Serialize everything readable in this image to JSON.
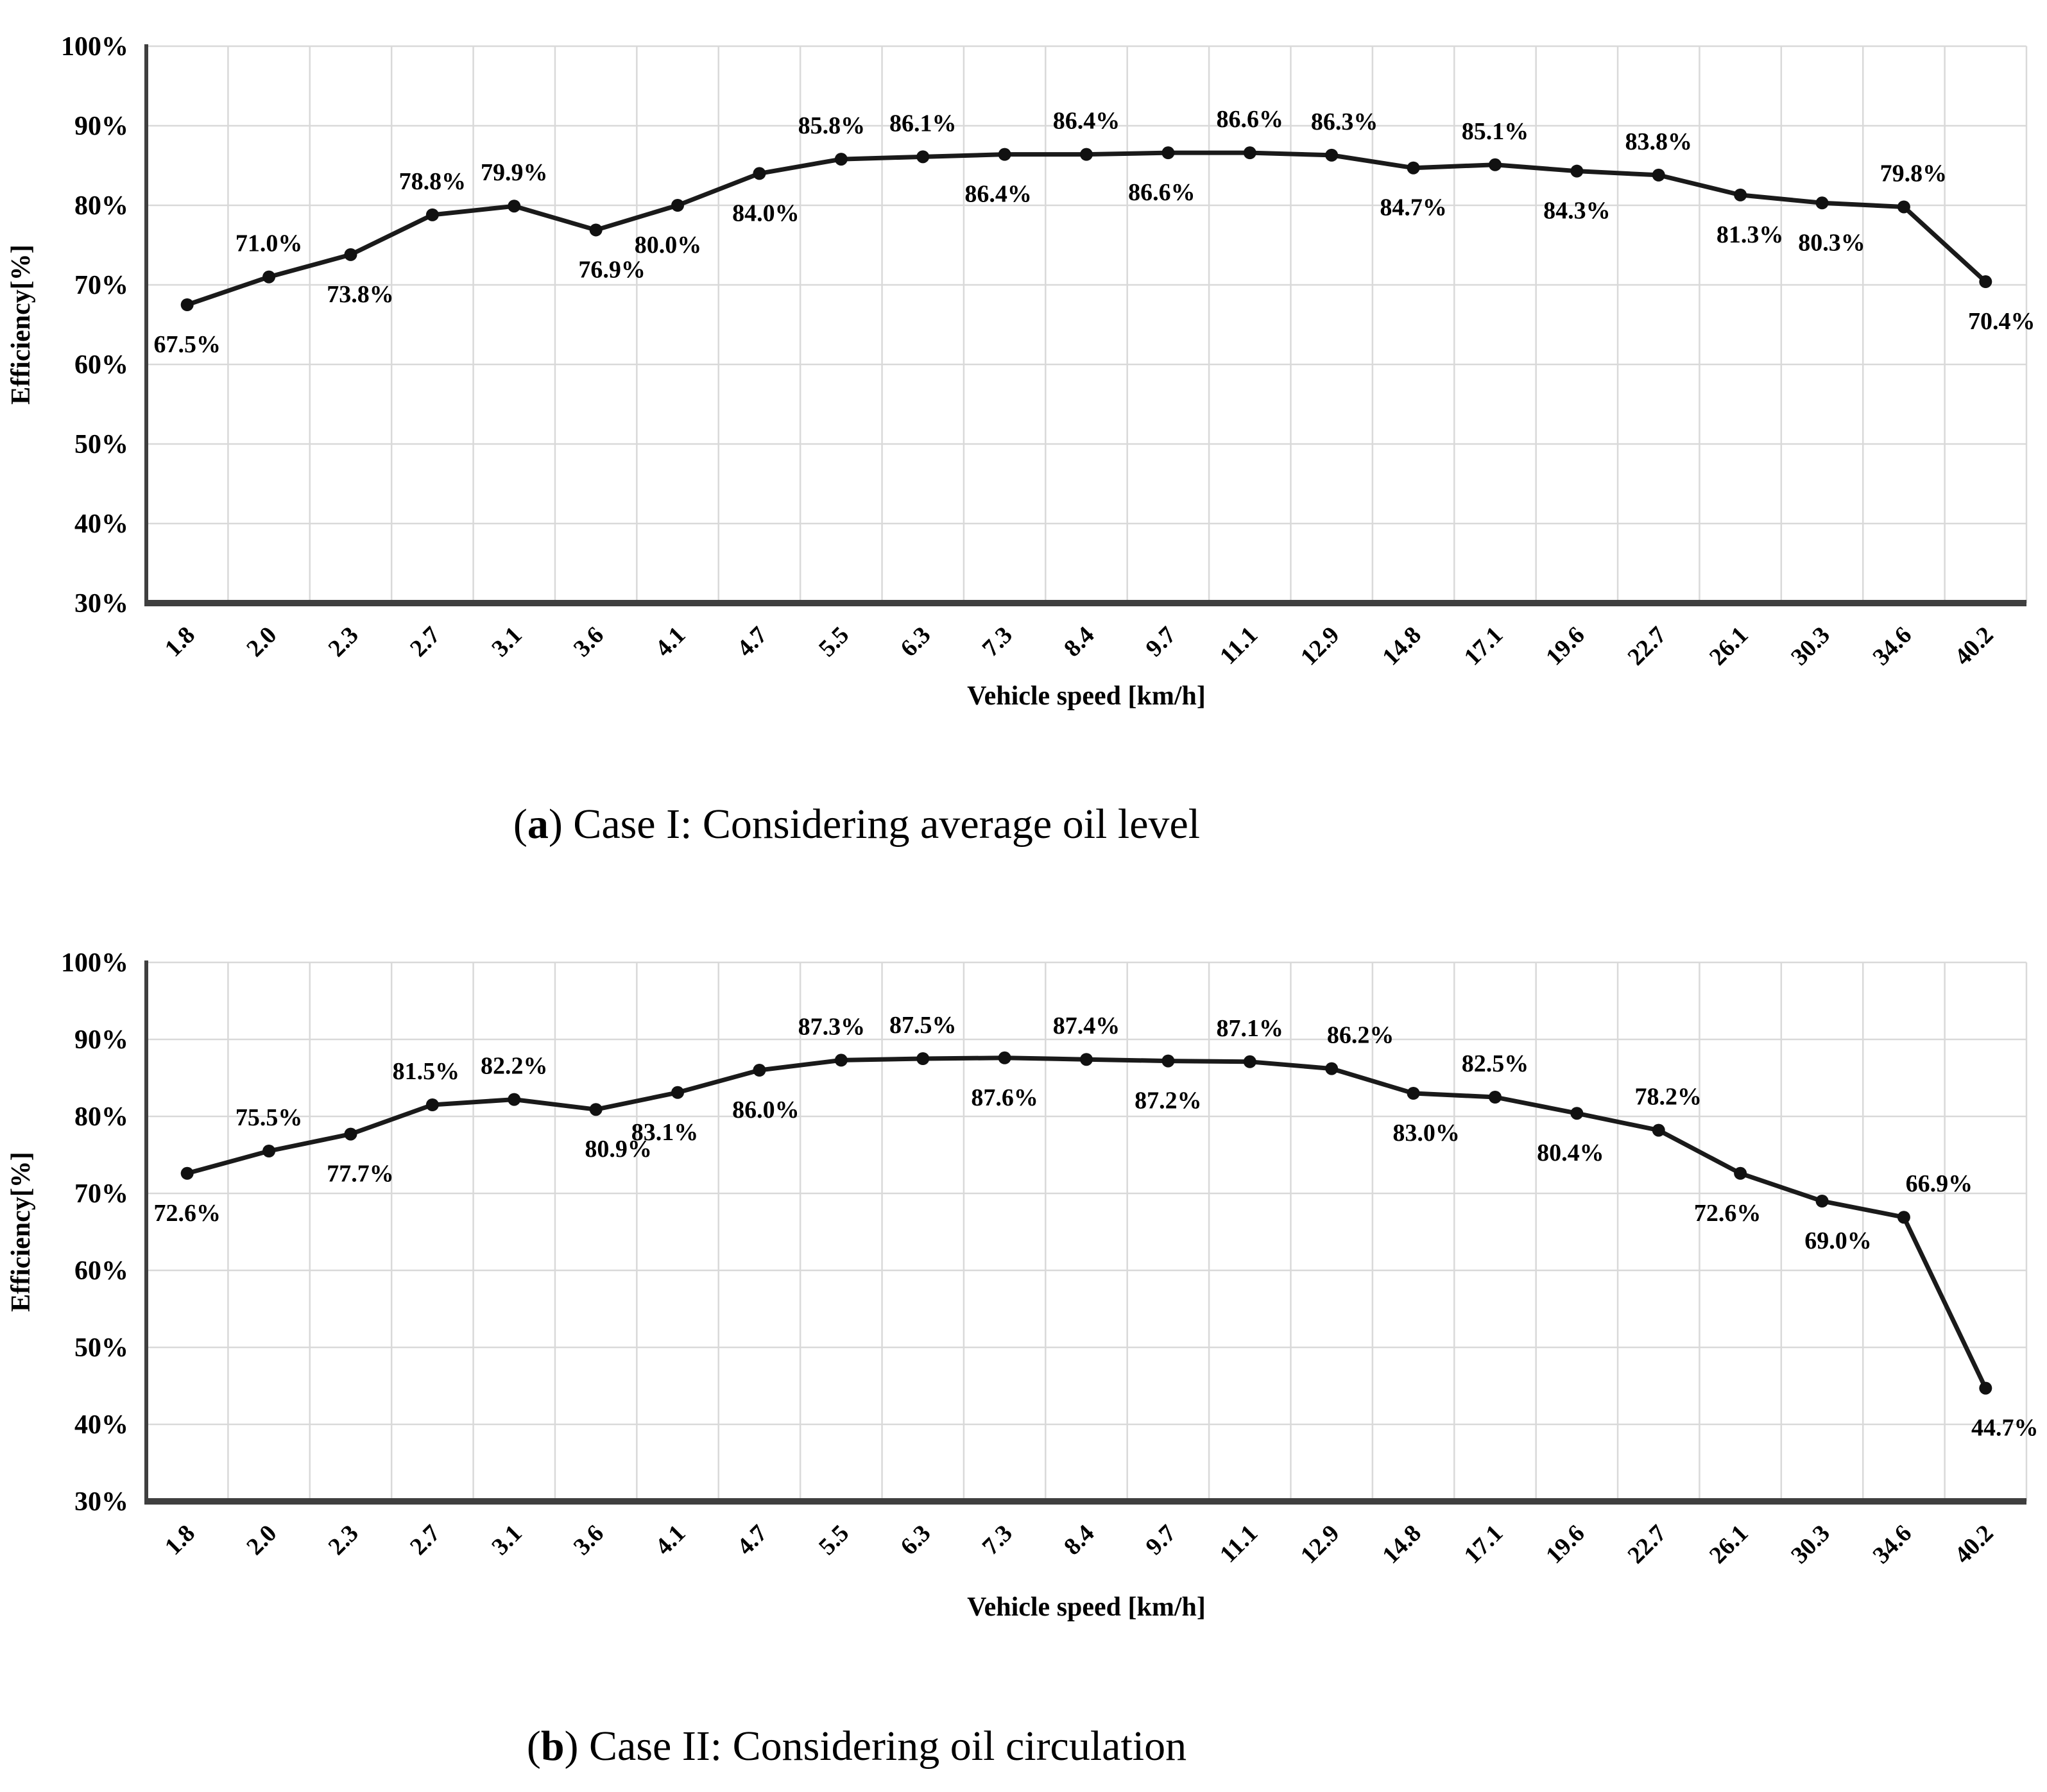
{
  "captions": {
    "a": {
      "pre": "(",
      "bold": "a",
      "post": ") Case I: Considering average oil level"
    },
    "b": {
      "pre": "(",
      "bold": "b",
      "post": ") Case II: Considering oil circulation"
    }
  },
  "chart_data": [
    {
      "id": "a",
      "type": "line",
      "title": "(a) Case I: Considering average oil level",
      "xlabel": "Vehicle speed [km/h]",
      "ylabel": "Efficiency[%]",
      "ylim": [
        30,
        100
      ],
      "y_tick_labels": [
        "100%",
        "90%",
        "80%",
        "70%",
        "60%",
        "50%",
        "40%",
        "30%"
      ],
      "grid": true,
      "legend": "none",
      "line_color": "#1a1a1a",
      "categories": [
        "1.8",
        "2.0",
        "2.3",
        "2.7",
        "3.1",
        "3.6",
        "4.1",
        "4.7",
        "5.5",
        "6.3",
        "7.3",
        "8.4",
        "9.7",
        "11.1",
        "12.9",
        "14.8",
        "17.1",
        "19.6",
        "22.7",
        "26.1",
        "30.3",
        "34.6",
        "40.2"
      ],
      "values": [
        67.5,
        71.0,
        73.8,
        78.8,
        79.9,
        76.9,
        80.0,
        84.0,
        85.8,
        86.1,
        86.4,
        86.4,
        86.6,
        86.6,
        86.3,
        84.7,
        85.1,
        84.3,
        83.8,
        81.3,
        80.3,
        79.8,
        70.4
      ],
      "labels": [
        {
          "text": "67.5%",
          "pos": "below",
          "dx": 0
        },
        {
          "text": "71.0%",
          "pos": "above",
          "dx": 0
        },
        {
          "text": "73.8%",
          "pos": "below",
          "dx": 15
        },
        {
          "text": "78.8%",
          "pos": "above",
          "dx": 0
        },
        {
          "text": "79.9%",
          "pos": "above",
          "dx": 0
        },
        {
          "text": "76.9%",
          "pos": "below",
          "dx": 25
        },
        {
          "text": "80.0%",
          "pos": "below",
          "dx": -15
        },
        {
          "text": "84.0%",
          "pos": "below",
          "dx": 10
        },
        {
          "text": "85.8%",
          "pos": "above",
          "dx": -15
        },
        {
          "text": "86.1%",
          "pos": "above",
          "dx": 0
        },
        {
          "text": "86.4%",
          "pos": "below",
          "dx": -10
        },
        {
          "text": "86.4%",
          "pos": "above",
          "dx": 0
        },
        {
          "text": "86.6%",
          "pos": "below",
          "dx": -10
        },
        {
          "text": "86.6%",
          "pos": "above",
          "dx": 0
        },
        {
          "text": "86.3%",
          "pos": "above",
          "dx": 20
        },
        {
          "text": "84.7%",
          "pos": "below",
          "dx": 0
        },
        {
          "text": "85.1%",
          "pos": "above",
          "dx": 0
        },
        {
          "text": "84.3%",
          "pos": "below",
          "dx": 0
        },
        {
          "text": "83.8%",
          "pos": "above",
          "dx": 0
        },
        {
          "text": "81.3%",
          "pos": "below",
          "dx": 15
        },
        {
          "text": "80.3%",
          "pos": "below",
          "dx": 15
        },
        {
          "text": "79.8%",
          "pos": "above",
          "dx": 15
        },
        {
          "text": "70.4%",
          "pos": "below",
          "dx": 25
        }
      ]
    },
    {
      "id": "b",
      "type": "line",
      "title": "(b) Case II: Considering oil circulation",
      "xlabel": "Vehicle speed [km/h]",
      "ylabel": "Efficiency[%]",
      "ylim": [
        30,
        100
      ],
      "y_tick_labels": [
        "100%",
        "90%",
        "80%",
        "70%",
        "60%",
        "50%",
        "40%",
        "30%"
      ],
      "grid": true,
      "legend": "none",
      "line_color": "#1a1a1a",
      "categories": [
        "1.8",
        "2.0",
        "2.3",
        "2.7",
        "3.1",
        "3.6",
        "4.1",
        "4.7",
        "5.5",
        "6.3",
        "7.3",
        "8.4",
        "9.7",
        "11.1",
        "12.9",
        "14.8",
        "17.1",
        "19.6",
        "22.7",
        "26.1",
        "30.3",
        "34.6",
        "40.2"
      ],
      "values": [
        72.6,
        75.5,
        77.7,
        81.5,
        82.2,
        80.9,
        83.1,
        86.0,
        87.3,
        87.5,
        87.6,
        87.4,
        87.2,
        87.1,
        86.2,
        83.0,
        82.5,
        80.4,
        78.2,
        72.6,
        69.0,
        66.9,
        44.7
      ],
      "labels": [
        {
          "text": "72.6%",
          "pos": "below",
          "dx": 0
        },
        {
          "text": "75.5%",
          "pos": "above",
          "dx": 0
        },
        {
          "text": "77.7%",
          "pos": "below",
          "dx": 15
        },
        {
          "text": "81.5%",
          "pos": "above",
          "dx": -10
        },
        {
          "text": "82.2%",
          "pos": "above",
          "dx": 0
        },
        {
          "text": "80.9%",
          "pos": "below",
          "dx": 35
        },
        {
          "text": "83.1%",
          "pos": "below",
          "dx": -20
        },
        {
          "text": "86.0%",
          "pos": "below",
          "dx": 10
        },
        {
          "text": "87.3%",
          "pos": "above",
          "dx": -15
        },
        {
          "text": "87.5%",
          "pos": "above",
          "dx": 0
        },
        {
          "text": "87.6%",
          "pos": "below",
          "dx": 0
        },
        {
          "text": "87.4%",
          "pos": "above",
          "dx": 0
        },
        {
          "text": "87.2%",
          "pos": "below",
          "dx": 0
        },
        {
          "text": "87.1%",
          "pos": "above",
          "dx": 0
        },
        {
          "text": "86.2%",
          "pos": "above",
          "dx": 45
        },
        {
          "text": "83.0%",
          "pos": "below",
          "dx": 20
        },
        {
          "text": "82.5%",
          "pos": "above",
          "dx": 0
        },
        {
          "text": "80.4%",
          "pos": "below",
          "dx": -10
        },
        {
          "text": "78.2%",
          "pos": "above",
          "dx": 15
        },
        {
          "text": "72.6%",
          "pos": "below",
          "dx": -20
        },
        {
          "text": "69.0%",
          "pos": "below",
          "dx": 25
        },
        {
          "text": "66.9%",
          "pos": "above",
          "dx": 55
        },
        {
          "text": "44.7%",
          "pos": "below",
          "dx": 30
        }
      ]
    }
  ],
  "style_colors": {
    "grid": "#d9d9d9",
    "axis": "#3f3f3f",
    "series": "#1a1a1a",
    "text": "#000000"
  }
}
